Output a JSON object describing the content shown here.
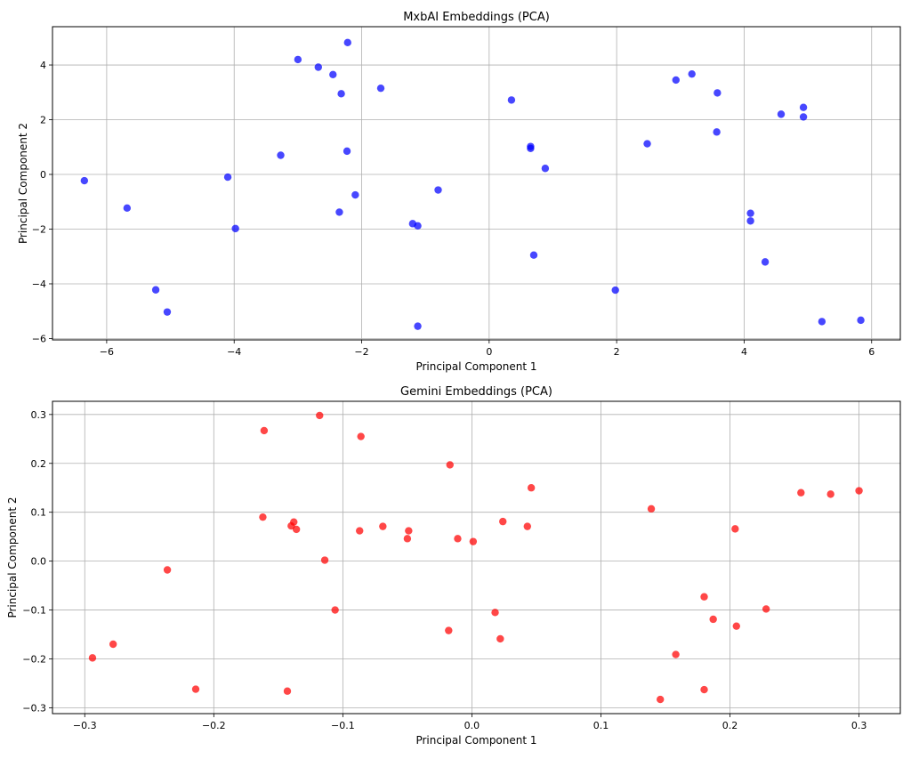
{
  "chart_data": [
    {
      "type": "scatter",
      "title": "MxbAI Embeddings (PCA)",
      "xlabel": "Principal Component 1",
      "ylabel": "Principal Component 2",
      "xlim": [
        -6.85,
        6.45
      ],
      "ylim": [
        -6.05,
        5.4
      ],
      "xticks": [
        -6,
        -4,
        -2,
        0,
        2,
        4,
        6
      ],
      "yticks": [
        -6,
        -4,
        -2,
        0,
        2,
        4
      ],
      "grid": true,
      "color": "#0000ff",
      "points": [
        [
          -6.35,
          -0.23
        ],
        [
          -5.68,
          -1.23
        ],
        [
          -5.23,
          -4.22
        ],
        [
          -5.05,
          -5.03
        ],
        [
          -4.1,
          -0.1
        ],
        [
          -3.98,
          -1.98
        ],
        [
          -3.27,
          0.7
        ],
        [
          -3.0,
          4.2
        ],
        [
          -2.68,
          3.92
        ],
        [
          -2.45,
          3.65
        ],
        [
          -2.32,
          2.95
        ],
        [
          -2.22,
          4.82
        ],
        [
          -2.23,
          0.85
        ],
        [
          -2.35,
          -1.38
        ],
        [
          -2.1,
          -0.75
        ],
        [
          -1.7,
          3.15
        ],
        [
          -1.2,
          -1.8
        ],
        [
          -1.12,
          -1.88
        ],
        [
          -1.12,
          -5.55
        ],
        [
          -0.8,
          -0.57
        ],
        [
          0.35,
          2.72
        ],
        [
          0.65,
          0.95
        ],
        [
          0.65,
          1.02
        ],
        [
          0.7,
          -2.95
        ],
        [
          0.88,
          0.22
        ],
        [
          1.98,
          -4.23
        ],
        [
          2.48,
          1.12
        ],
        [
          2.93,
          3.45
        ],
        [
          3.18,
          3.67
        ],
        [
          3.57,
          1.55
        ],
        [
          3.58,
          2.98
        ],
        [
          4.1,
          -1.42
        ],
        [
          4.1,
          -1.7
        ],
        [
          4.33,
          -3.2
        ],
        [
          4.58,
          2.2
        ],
        [
          4.93,
          2.45
        ],
        [
          4.93,
          2.1
        ],
        [
          5.22,
          -5.38
        ],
        [
          5.83,
          -5.33
        ]
      ]
    },
    {
      "type": "scatter",
      "title": "Gemini Embeddings (PCA)",
      "xlabel": "Principal Component 1",
      "ylabel": "Principal Component 2",
      "xlim": [
        -0.325,
        0.332
      ],
      "ylim": [
        -0.312,
        0.327
      ],
      "xticks": [
        -0.3,
        -0.2,
        -0.1,
        0.0,
        0.1,
        0.2,
        0.3
      ],
      "xticklabels": [
        "−0.3",
        "−0.2",
        "−0.1",
        "0.0",
        "0.1",
        "0.2",
        "0.3"
      ],
      "yticks": [
        -0.3,
        -0.2,
        -0.1,
        0.0,
        0.1,
        0.2,
        0.3
      ],
      "yticklabels": [
        "−0.3",
        "−0.2",
        "−0.1",
        "0.0",
        "0.1",
        "0.2",
        "0.3"
      ],
      "grid": true,
      "color": "#ff0000",
      "points": [
        [
          -0.294,
          -0.198
        ],
        [
          -0.278,
          -0.17
        ],
        [
          -0.236,
          -0.018
        ],
        [
          -0.214,
          -0.262
        ],
        [
          -0.162,
          0.09
        ],
        [
          -0.161,
          0.267
        ],
        [
          -0.143,
          -0.266
        ],
        [
          -0.14,
          0.072
        ],
        [
          -0.138,
          0.08
        ],
        [
          -0.136,
          0.065
        ],
        [
          -0.118,
          0.298
        ],
        [
          -0.114,
          0.002
        ],
        [
          -0.106,
          -0.1
        ],
        [
          -0.087,
          0.062
        ],
        [
          -0.086,
          0.255
        ],
        [
          -0.069,
          0.071
        ],
        [
          -0.05,
          0.046
        ],
        [
          -0.049,
          0.062
        ],
        [
          -0.018,
          -0.142
        ],
        [
          -0.017,
          0.197
        ],
        [
          -0.011,
          0.046
        ],
        [
          0.001,
          0.04
        ],
        [
          0.018,
          -0.105
        ],
        [
          0.022,
          -0.159
        ],
        [
          0.024,
          0.081
        ],
        [
          0.043,
          0.071
        ],
        [
          0.046,
          0.15
        ],
        [
          0.139,
          0.107
        ],
        [
          0.146,
          -0.283
        ],
        [
          0.158,
          -0.191
        ],
        [
          0.18,
          -0.073
        ],
        [
          0.18,
          -0.263
        ],
        [
          0.187,
          -0.119
        ],
        [
          0.204,
          0.066
        ],
        [
          0.205,
          -0.133
        ],
        [
          0.228,
          -0.098
        ],
        [
          0.255,
          0.14
        ],
        [
          0.278,
          0.137
        ],
        [
          0.3,
          0.144
        ]
      ]
    }
  ]
}
